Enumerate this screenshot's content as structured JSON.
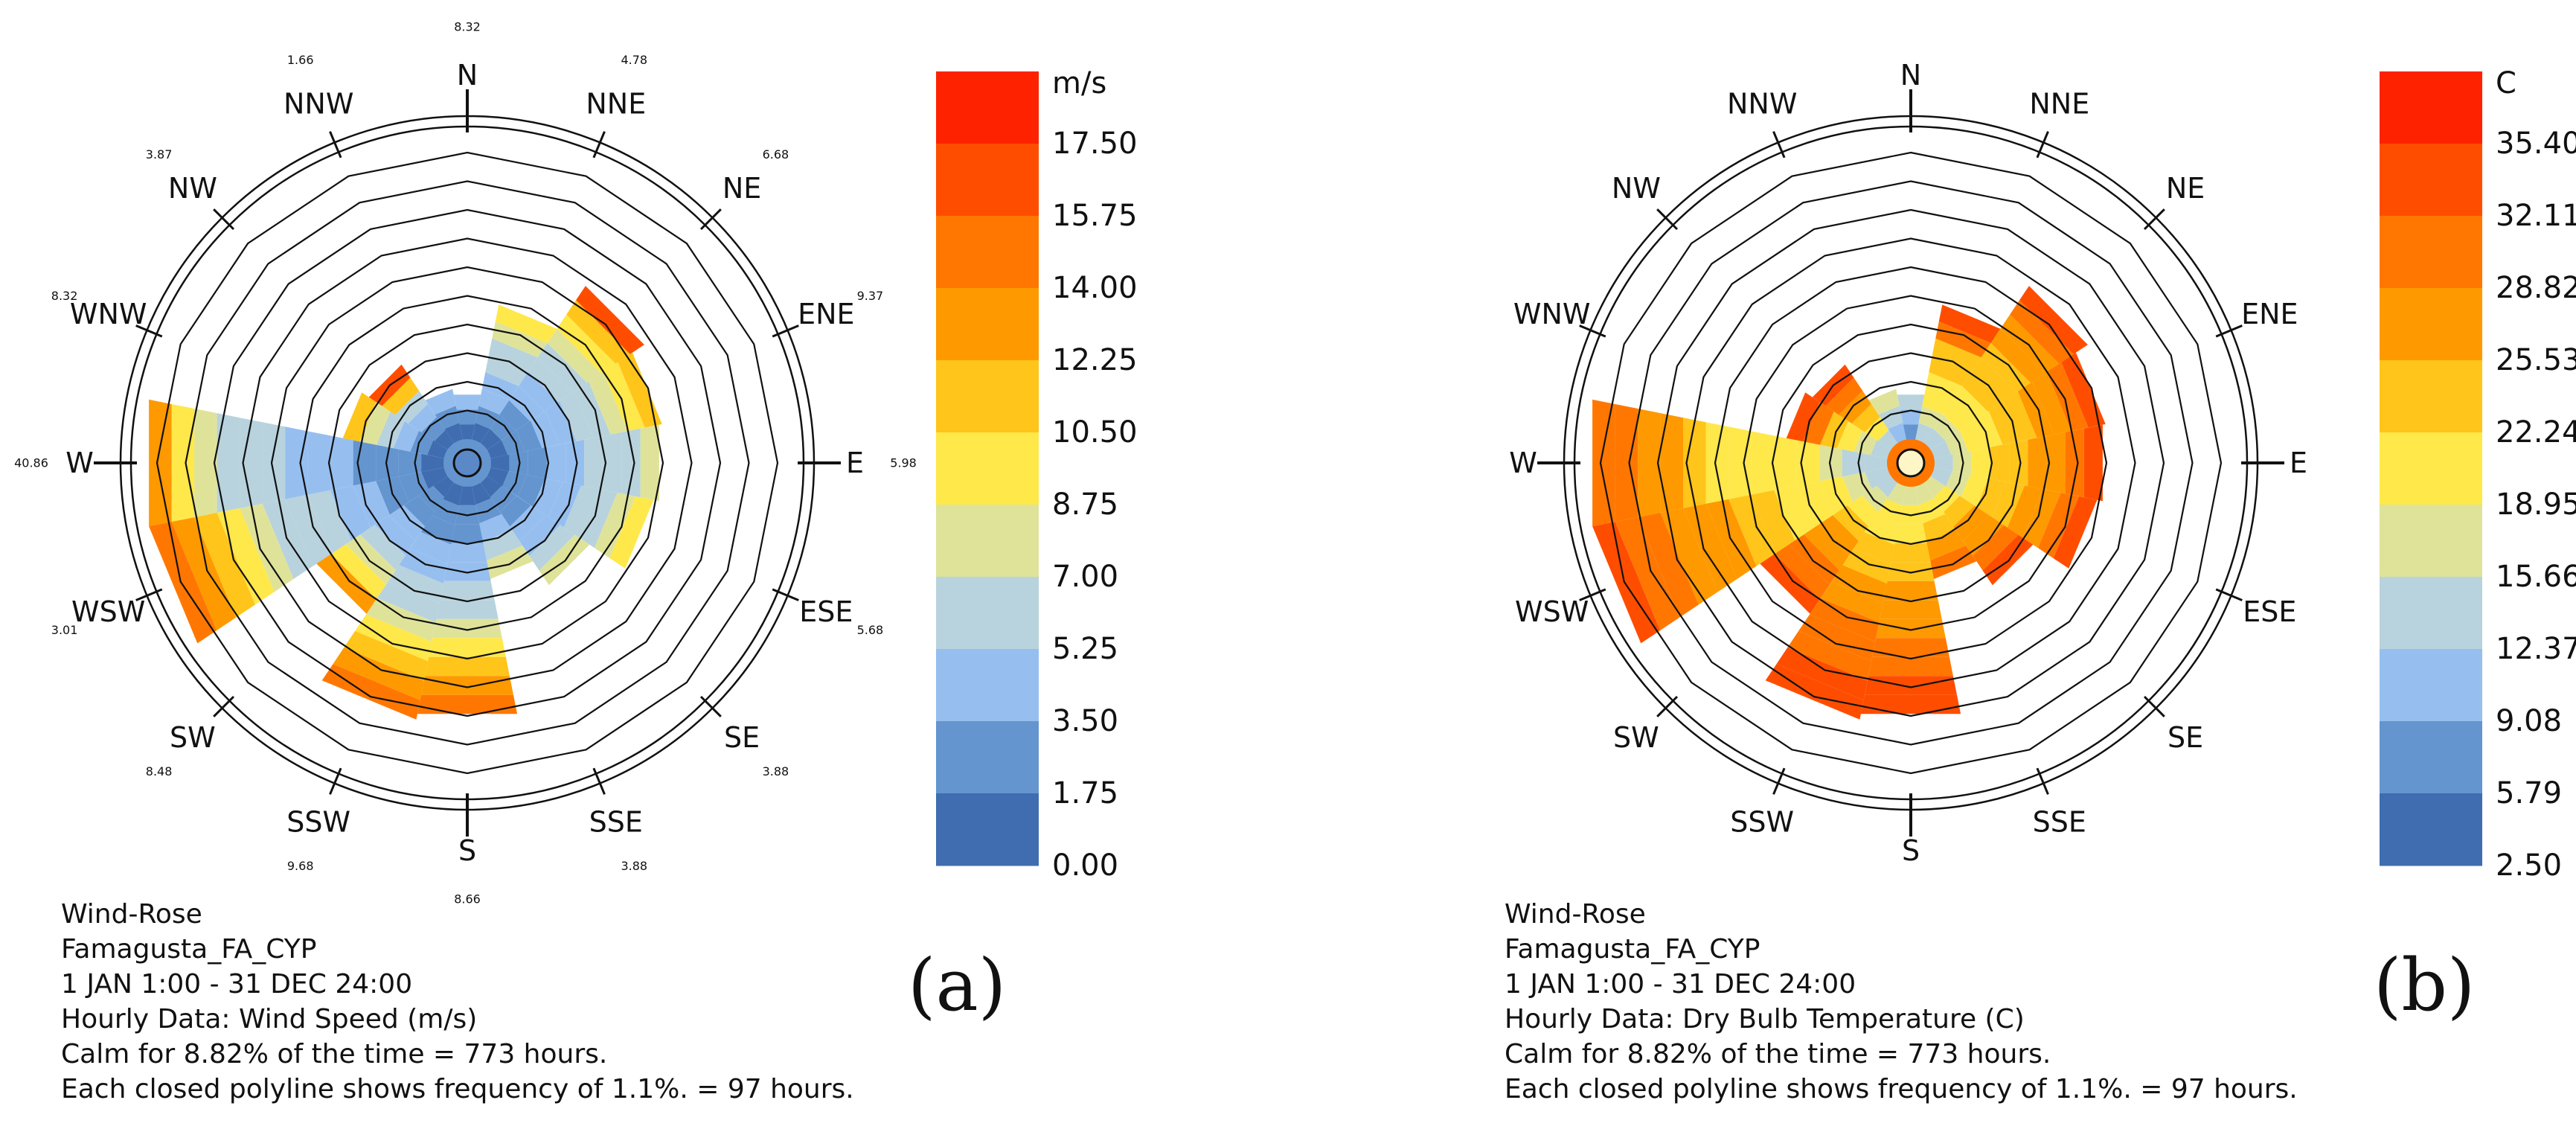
{
  "figure": {
    "panel_a_label": "(a)",
    "panel_b_label": "(b)"
  },
  "chart_data": [
    {
      "type": "wind-rose",
      "panel": "(a)",
      "directions": [
        "N",
        "NNE",
        "NE",
        "ENE",
        "E",
        "ESE",
        "SE",
        "SSE",
        "S",
        "SSW",
        "SW",
        "WSW",
        "W",
        "WNW",
        "NW",
        "NNW"
      ],
      "rings": 10,
      "ring_frequency_percent": 1.1,
      "legend": {
        "unit": "m/s",
        "ticks": [
          "17.50",
          "15.75",
          "14.00",
          "12.25",
          "10.50",
          "8.75",
          "7.00",
          "5.25",
          "3.50",
          "1.75",
          "0.00"
        ],
        "colors": [
          "#ff2200",
          "#ff4d00",
          "#ff7700",
          "#ff9900",
          "#ffc51a",
          "#ffe84a",
          "#dfe39a",
          "#b8d3dd",
          "#96bff0",
          "#6495cf",
          "#3f6db0"
        ]
      },
      "direction_values": [
        "8.32",
        "4.78",
        "6.68",
        "9.37",
        "5.98",
        "5.68",
        "3.88",
        "3.88",
        "8.66",
        "9.68",
        "8.48",
        "3.01",
        "40.86",
        "8.32",
        "3.87",
        "1.66"
      ],
      "sectors": [
        {
          "dir": "N",
          "rings": 1.6,
          "bands": [
            0,
            1,
            2
          ]
        },
        {
          "dir": "NNE",
          "rings": 4.8,
          "bands": [
            0,
            1,
            2,
            2,
            3,
            3,
            4,
            5
          ]
        },
        {
          "dir": "NE",
          "rings": 6.6,
          "bands": [
            0,
            1,
            1,
            2,
            2,
            3,
            3,
            4,
            5,
            6,
            9
          ]
        },
        {
          "dir": "ENE",
          "rings": 6.1,
          "bands": [
            0,
            1,
            1,
            2,
            2,
            3,
            3,
            4,
            5,
            6
          ]
        },
        {
          "dir": "E",
          "rings": 6.0,
          "bands": [
            0,
            1,
            1,
            2,
            2,
            3,
            3,
            3,
            4
          ]
        },
        {
          "dir": "ESE",
          "rings": 5.8,
          "bands": [
            0,
            1,
            1,
            2,
            2,
            3,
            3,
            4,
            5
          ]
        },
        {
          "dir": "SE",
          "rings": 4.3,
          "bands": [
            0,
            1,
            1,
            2,
            2,
            3,
            4
          ]
        },
        {
          "dir": "SSE",
          "rings": 3.3,
          "bands": [
            0,
            1,
            2,
            3,
            4
          ]
        },
        {
          "dir": "S",
          "rings": 8.1,
          "bands": [
            0,
            1,
            1,
            2,
            2,
            3,
            3,
            4,
            5,
            6,
            7,
            8
          ]
        },
        {
          "dir": "SSW",
          "rings": 8.3,
          "bands": [
            0,
            1,
            1,
            2,
            2,
            3,
            3,
            4,
            5,
            6,
            7,
            8
          ]
        },
        {
          "dir": "SW",
          "rings": 5.5,
          "bands": [
            0,
            1,
            1,
            2,
            2,
            3,
            4,
            5,
            7
          ]
        },
        {
          "dir": "WSW",
          "rings": 10.5,
          "bands": [
            0,
            1,
            1,
            2,
            2,
            3,
            3,
            3,
            4,
            5,
            6,
            7,
            8
          ]
        },
        {
          "dir": "W",
          "rings": 10.5,
          "bands": [
            0,
            1,
            1,
            1,
            2,
            2,
            2,
            3,
            3,
            3,
            4,
            5,
            7
          ]
        },
        {
          "dir": "WNW",
          "rings": 3.6,
          "bands": [
            0,
            1,
            2,
            3,
            4,
            6
          ]
        },
        {
          "dir": "NW",
          "rings": 3.3,
          "bands": [
            0,
            1,
            2,
            3,
            6,
            9
          ]
        },
        {
          "dir": "NNW",
          "rings": 1.8,
          "bands": [
            0,
            1,
            2
          ]
        }
      ],
      "info": {
        "title": "Wind-Rose",
        "location": "Famagusta_FA_CYP",
        "period": "1 JAN 1:00 - 31 DEC 24:00",
        "data": "Hourly Data: Wind Speed (m/s)",
        "calm": "Calm for 8.82% of the time = 773 hours.",
        "polyline": "Each closed polyline shows frequency of 1.1%. = 97 hours."
      }
    },
    {
      "type": "wind-rose",
      "panel": "(b)",
      "directions": [
        "N",
        "NNE",
        "NE",
        "ENE",
        "E",
        "ESE",
        "SE",
        "SSE",
        "S",
        "SSW",
        "SW",
        "WSW",
        "W",
        "WNW",
        "NW",
        "NNW"
      ],
      "rings": 10,
      "ring_frequency_percent": 1.1,
      "legend": {
        "unit": "C",
        "ticks": [
          "35.40",
          "32.11",
          "28.82",
          "25.53",
          "22.24",
          "18.95",
          "15.66",
          "12.37",
          "9.08",
          "5.79",
          "2.50"
        ],
        "colors": [
          "#ff2200",
          "#ff4d00",
          "#ff7700",
          "#ff9900",
          "#ffc51a",
          "#ffe84a",
          "#dfe39a",
          "#b8d3dd",
          "#96bff0",
          "#6495cf",
          "#3f6db0"
        ]
      },
      "sectors": [
        {
          "dir": "N",
          "rings": 1.6,
          "bands": [
            1,
            2,
            3
          ]
        },
        {
          "dir": "NNE",
          "rings": 4.8,
          "bands": [
            3,
            4,
            5,
            5,
            6,
            6,
            8,
            9
          ]
        },
        {
          "dir": "NE",
          "rings": 6.6,
          "bands": [
            3,
            4,
            5,
            5,
            6,
            6,
            6,
            7,
            7,
            8,
            9
          ]
        },
        {
          "dir": "ENE",
          "rings": 6.1,
          "bands": [
            3,
            4,
            5,
            5,
            6,
            6,
            7,
            7,
            8,
            9
          ]
        },
        {
          "dir": "E",
          "rings": 6.0,
          "bands": [
            3,
            4,
            5,
            6,
            6,
            7,
            7,
            8,
            9
          ]
        },
        {
          "dir": "ESE",
          "rings": 5.8,
          "bands": [
            3,
            4,
            5,
            6,
            6,
            7,
            7,
            8,
            9
          ]
        },
        {
          "dir": "SE",
          "rings": 4.3,
          "bands": [
            4,
            5,
            6,
            7,
            7,
            8,
            9
          ]
        },
        {
          "dir": "SSE",
          "rings": 3.3,
          "bands": [
            4,
            5,
            6,
            7,
            8
          ]
        },
        {
          "dir": "S",
          "rings": 8.1,
          "bands": [
            4,
            5,
            5,
            6,
            6,
            7,
            7,
            7,
            8,
            8,
            9,
            9
          ]
        },
        {
          "dir": "SSW",
          "rings": 8.3,
          "bands": [
            4,
            5,
            5,
            6,
            6,
            7,
            7,
            8,
            8,
            8,
            9,
            9
          ]
        },
        {
          "dir": "SW",
          "rings": 5.5,
          "bands": [
            3,
            4,
            5,
            6,
            7,
            7,
            8,
            8,
            9
          ]
        },
        {
          "dir": "WSW",
          "rings": 10.5,
          "bands": [
            3,
            4,
            5,
            5,
            5,
            6,
            6,
            7,
            7,
            7,
            8,
            8,
            9
          ]
        },
        {
          "dir": "W",
          "rings": 10.5,
          "bands": [
            3,
            3,
            4,
            5,
            5,
            5,
            5,
            5,
            6,
            7,
            7,
            8,
            8
          ]
        },
        {
          "dir": "WNW",
          "rings": 3.6,
          "bands": [
            3,
            4,
            5,
            6,
            8,
            9
          ]
        },
        {
          "dir": "NW",
          "rings": 3.3,
          "bands": [
            3,
            5,
            6,
            7,
            8,
            9
          ]
        },
        {
          "dir": "NNW",
          "rings": 1.8,
          "bands": [
            2,
            3,
            4
          ]
        }
      ],
      "info": {
        "title": "Wind-Rose",
        "location": "Famagusta_FA_CYP",
        "period": "1 JAN 1:00 - 31 DEC 24:00",
        "data": "Hourly Data: Dry Bulb Temperature (C)",
        "calm": "Calm for 8.82% of the time = 773 hours.",
        "polyline": "Each closed polyline shows frequency of 1.1%. = 97 hours."
      }
    }
  ]
}
